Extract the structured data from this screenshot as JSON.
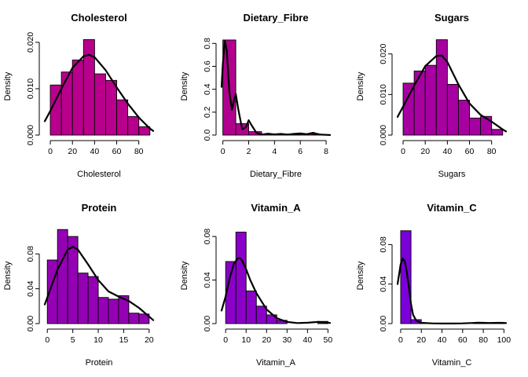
{
  "chart_data": [
    {
      "type": "histogram",
      "title": "Cholesterol",
      "xlabel": "Cholesterol",
      "ylabel": "Density",
      "color": "#B8008C",
      "bin_edges": [
        0,
        10,
        20,
        30,
        40,
        50,
        60,
        70,
        80,
        90
      ],
      "values": [
        0.0108,
        0.0136,
        0.0162,
        0.0206,
        0.0132,
        0.0118,
        0.0076,
        0.004,
        0.0018
      ],
      "density_curve": {
        "x": [
          -5,
          0,
          10,
          20,
          30,
          35,
          40,
          50,
          60,
          70,
          80,
          90,
          93
        ],
        "y": [
          0.003,
          0.0052,
          0.01,
          0.0145,
          0.017,
          0.0173,
          0.0168,
          0.014,
          0.0103,
          0.0068,
          0.0038,
          0.0014,
          0.0009
        ]
      },
      "xlim": [
        -5,
        93
      ],
      "ylim": [
        0,
        0.021
      ],
      "xticks": [
        0,
        20,
        40,
        60,
        80
      ],
      "xtick_labels": [
        "0",
        "20",
        "40",
        "60",
        "80"
      ],
      "yticks": [
        0,
        0.01,
        0.02
      ],
      "ytick_labels": [
        "0.000",
        "0.010",
        "0.020"
      ]
    },
    {
      "type": "histogram",
      "title": "Dietary_Fibre",
      "xlabel": "Dietary_Fibre",
      "ylabel": "Density",
      "color": "#B2008E",
      "bin_edges": [
        0,
        1,
        2,
        3,
        4,
        5,
        6,
        7,
        8
      ],
      "values": [
        0.83,
        0.1,
        0.03,
        0.01,
        0.008,
        0.006,
        0.01,
        0.006
      ],
      "density_curve": {
        "x": [
          -0.1,
          0,
          0.15,
          0.3,
          0.5,
          0.7,
          0.85,
          1.0,
          1.2,
          1.5,
          1.8,
          2.0,
          2.2,
          2.6,
          3.0,
          3.5,
          4.0,
          4.5,
          5.0,
          5.5,
          6.0,
          6.5,
          7.0,
          7.3,
          7.6,
          8.0,
          8.3
        ],
        "y": [
          0.42,
          0.62,
          0.82,
          0.74,
          0.38,
          0.22,
          0.3,
          0.36,
          0.22,
          0.05,
          0.07,
          0.13,
          0.09,
          0.02,
          0.005,
          0.012,
          0.006,
          0.01,
          0.004,
          0.01,
          0.015,
          0.008,
          0.02,
          0.01,
          0.004,
          0.002,
          0.001
        ]
      },
      "xlim": [
        -0.1,
        8.3
      ],
      "ylim": [
        0,
        0.85
      ],
      "xticks": [
        0,
        2,
        4,
        6,
        8
      ],
      "xtick_labels": [
        "0",
        "2",
        "4",
        "6",
        "8"
      ],
      "yticks": [
        0,
        0.2,
        0.4,
        0.6,
        0.8
      ],
      "ytick_labels": [
        "0.0",
        "0.2",
        "0.4",
        "0.6",
        "0.8"
      ]
    },
    {
      "type": "histogram",
      "title": "Sugars",
      "xlabel": "Sugars",
      "ylabel": "Density",
      "color": "#A600A0",
      "bin_edges": [
        0,
        10,
        20,
        30,
        40,
        50,
        60,
        70,
        80,
        90
      ],
      "values": [
        0.0128,
        0.0158,
        0.0172,
        0.0235,
        0.0125,
        0.0086,
        0.0042,
        0.0046,
        0.0014
      ],
      "density_curve": {
        "x": [
          -5,
          0,
          10,
          20,
          30,
          35,
          40,
          50,
          60,
          70,
          80,
          90,
          93
        ],
        "y": [
          0.0045,
          0.007,
          0.0122,
          0.017,
          0.0195,
          0.0196,
          0.018,
          0.0125,
          0.0078,
          0.005,
          0.0033,
          0.0014,
          0.0009
        ]
      },
      "xlim": [
        -5,
        93
      ],
      "ylim": [
        0,
        0.024
      ],
      "xticks": [
        0,
        20,
        40,
        60,
        80
      ],
      "xtick_labels": [
        "0",
        "20",
        "40",
        "60",
        "80"
      ],
      "yticks": [
        0,
        0.01,
        0.02
      ],
      "ytick_labels": [
        "0.000",
        "0.010",
        "0.020"
      ]
    },
    {
      "type": "histogram",
      "title": "Protein",
      "xlabel": "Protein",
      "ylabel": "Density",
      "color": "#9400B4",
      "bin_edges": [
        0,
        2,
        4,
        6,
        8,
        10,
        12,
        14,
        16,
        18,
        20
      ],
      "values": [
        0.073,
        0.108,
        0.1,
        0.058,
        0.054,
        0.03,
        0.028,
        0.032,
        0.012,
        0.011
      ],
      "density_curve": {
        "x": [
          -0.5,
          0,
          2,
          4,
          5,
          6,
          8,
          10,
          12,
          14,
          16,
          18,
          20,
          20.8
        ],
        "y": [
          0.022,
          0.03,
          0.062,
          0.085,
          0.088,
          0.085,
          0.068,
          0.05,
          0.037,
          0.031,
          0.026,
          0.018,
          0.008,
          0.004
        ]
      },
      "xlim": [
        -0.5,
        20.8
      ],
      "ylim": [
        0,
        0.11
      ],
      "xticks": [
        0,
        5,
        10,
        15,
        20
      ],
      "xtick_labels": [
        "0",
        "5",
        "10",
        "15",
        "20"
      ],
      "yticks": [
        0,
        0.04,
        0.08
      ],
      "ytick_labels": [
        "0.00",
        "0.04",
        "0.08"
      ]
    },
    {
      "type": "histogram",
      "title": "Vitamin_A",
      "xlabel": "Vitamin_A",
      "ylabel": "Density",
      "color": "#8A00C8",
      "bin_edges": [
        0,
        5,
        10,
        15,
        20,
        25,
        30,
        35,
        40,
        45,
        50
      ],
      "values": [
        0.057,
        0.084,
        0.03,
        0.016,
        0.008,
        0.003,
        0.0,
        0.0,
        0.0,
        0.002
      ],
      "density_curve": {
        "x": [
          -2,
          0,
          2,
          4,
          6,
          7,
          8,
          10,
          12,
          15,
          20,
          25,
          30,
          35,
          40,
          45,
          48,
          51
        ],
        "y": [
          0.012,
          0.025,
          0.042,
          0.055,
          0.06,
          0.06,
          0.058,
          0.05,
          0.04,
          0.028,
          0.013,
          0.005,
          0.0015,
          0.0005,
          0.0008,
          0.0015,
          0.0012,
          0.0006
        ]
      },
      "xlim": [
        -2,
        51
      ],
      "ylim": [
        0,
        0.088
      ],
      "xticks": [
        0,
        10,
        20,
        30,
        40,
        50
      ],
      "xtick_labels": [
        "0",
        "10",
        "20",
        "30",
        "40",
        "50"
      ],
      "yticks": [
        0,
        0.04,
        0.08
      ],
      "ytick_labels": [
        "0.00",
        "0.04",
        "0.08"
      ]
    },
    {
      "type": "histogram",
      "title": "Vitamin_C",
      "xlabel": "Vitamin_C",
      "ylabel": "Density",
      "color": "#7A00D8",
      "bin_edges": [
        0,
        10,
        20,
        30,
        40,
        50,
        60,
        70,
        80,
        90,
        100
      ],
      "values": [
        0.094,
        0.004,
        0.0005,
        0.0,
        0.0,
        0.0,
        0.0,
        0.0005,
        0.0008,
        0.0005
      ],
      "density_curve": {
        "x": [
          -3,
          0,
          2,
          4,
          6,
          8,
          10,
          12,
          15,
          20,
          30,
          40,
          50,
          60,
          70,
          75,
          80,
          85,
          90,
          95,
          100,
          102
        ],
        "y": [
          0.04,
          0.06,
          0.066,
          0.063,
          0.052,
          0.036,
          0.02,
          0.009,
          0.003,
          0.0008,
          0.0002,
          0.0001,
          0.0001,
          0.0002,
          0.0006,
          0.0009,
          0.0008,
          0.0006,
          0.0007,
          0.0008,
          0.0007,
          0.0005
        ]
      },
      "xlim": [
        -3,
        102
      ],
      "ylim": [
        0,
        0.097
      ],
      "xticks": [
        0,
        20,
        40,
        60,
        80,
        100
      ],
      "xtick_labels": [
        "0",
        "20",
        "40",
        "60",
        "80",
        "100"
      ],
      "yticks": [
        0,
        0.04,
        0.08
      ],
      "ytick_labels": [
        "0.00",
        "0.04",
        "0.08"
      ]
    }
  ]
}
